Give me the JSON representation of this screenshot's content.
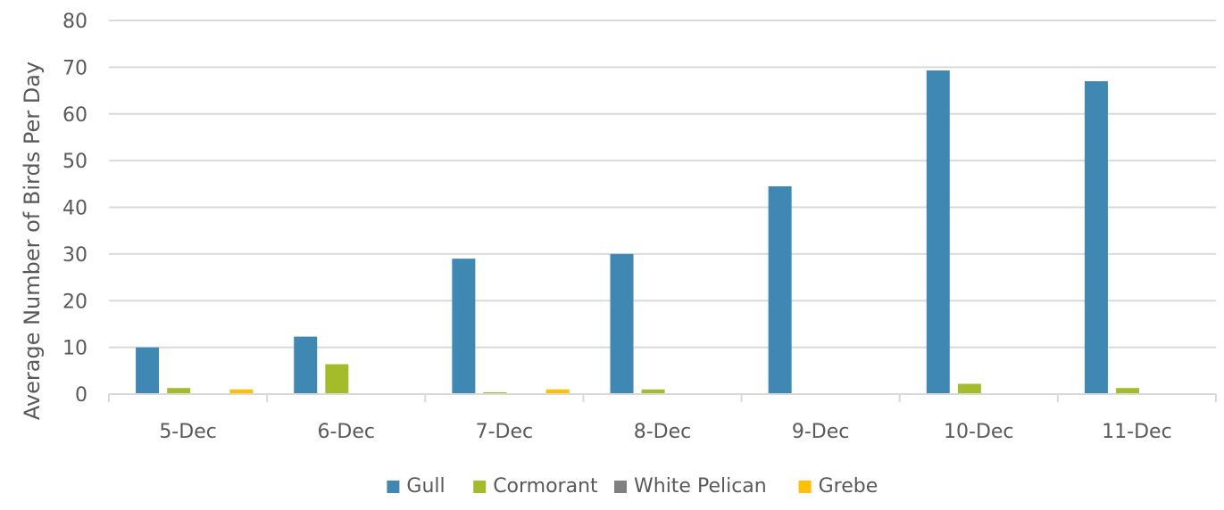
{
  "chart_data": {
    "type": "bar",
    "title": "",
    "xlabel": "",
    "ylabel": "Average Number of Birds Per Day",
    "ylim": [
      0,
      80
    ],
    "yticks": [
      0,
      10,
      20,
      30,
      40,
      50,
      60,
      70,
      80
    ],
    "categories": [
      "5-Dec",
      "6-Dec",
      "7-Dec",
      "8-Dec",
      "9-Dec",
      "10-Dec",
      "11-Dec"
    ],
    "grid": "horizontal",
    "legend_position": "bottom",
    "series": [
      {
        "name": "Gull",
        "color": "#3f88b4",
        "values": [
          10,
          12.3,
          29,
          30,
          44.5,
          69.3,
          67
        ]
      },
      {
        "name": "Cormorant",
        "color": "#a5bc2a",
        "values": [
          1.3,
          6.4,
          0.4,
          1,
          0,
          2.2,
          1.3
        ]
      },
      {
        "name": "White Pelican",
        "color": "#808080",
        "values": [
          0,
          0,
          0,
          0,
          0,
          0,
          0
        ]
      },
      {
        "name": "Grebe",
        "color": "#ffc000",
        "values": [
          1,
          0,
          1,
          0,
          0,
          0,
          0
        ]
      }
    ]
  }
}
